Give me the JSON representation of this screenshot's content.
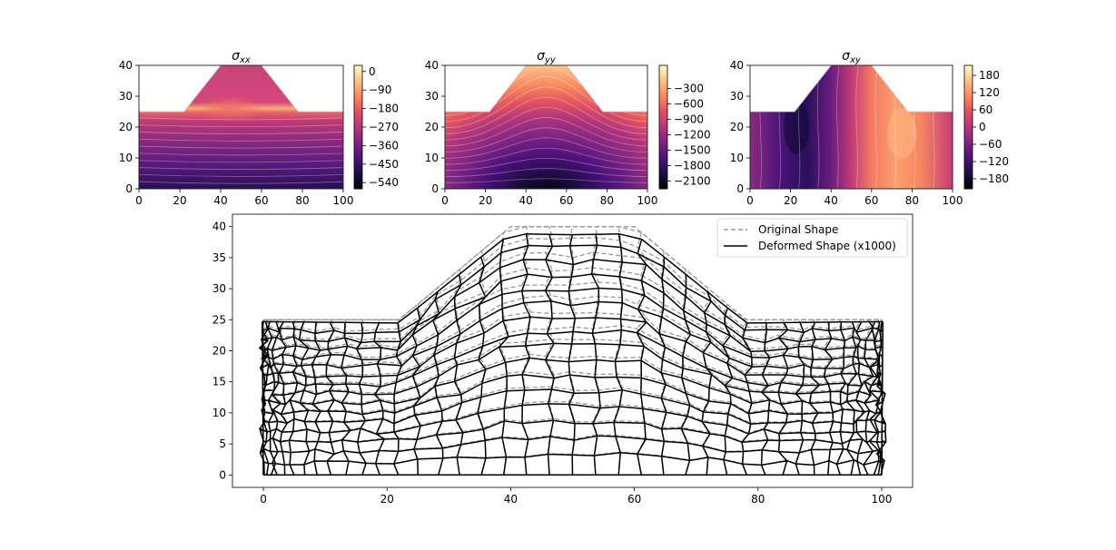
{
  "chart_data": [
    {
      "type": "contour",
      "title": "σ",
      "title_subscript": "xx",
      "xlim": [
        0,
        100
      ],
      "ylim": [
        0,
        40
      ],
      "xticks": [
        "0",
        "20",
        "40",
        "60",
        "80",
        "100"
      ],
      "yticks": [
        "0",
        "10",
        "20",
        "30",
        "40"
      ],
      "colormap": "magma",
      "colorbar_ticks": [
        "0",
        "−90",
        "−180",
        "−270",
        "−360",
        "−450",
        "−540"
      ],
      "colorbar_range": [
        -570,
        30
      ]
    },
    {
      "type": "contour",
      "title": "σ",
      "title_subscript": "yy",
      "xlim": [
        0,
        100
      ],
      "ylim": [
        0,
        40
      ],
      "xticks": [
        "0",
        "20",
        "40",
        "60",
        "80",
        "100"
      ],
      "yticks": [
        "0",
        "10",
        "20",
        "30",
        "40"
      ],
      "colormap": "magma",
      "colorbar_ticks": [
        "−300",
        "−600",
        "−900",
        "−1200",
        "−1500",
        "−1800",
        "−2100"
      ],
      "colorbar_range": [
        -2250,
        150
      ]
    },
    {
      "type": "contour",
      "title": "σ",
      "title_subscript": "xy",
      "xlim": [
        0,
        100
      ],
      "ylim": [
        0,
        40
      ],
      "xticks": [
        "0",
        "20",
        "40",
        "60",
        "80",
        "100"
      ],
      "yticks": [
        "0",
        "10",
        "20",
        "30",
        "40"
      ],
      "colormap": "magma",
      "colorbar_ticks": [
        "180",
        "120",
        "60",
        "0",
        "−60",
        "−120",
        "−180"
      ],
      "colorbar_range": [
        -215,
        215
      ]
    },
    {
      "type": "mesh",
      "xlim": [
        -5,
        105
      ],
      "ylim": [
        -2,
        42
      ],
      "xticks": [
        "0",
        "20",
        "40",
        "60",
        "80",
        "100"
      ],
      "yticks": [
        "0",
        "5",
        "10",
        "15",
        "20",
        "25",
        "30",
        "35",
        "40"
      ],
      "legend_position": "top-right",
      "series": [
        {
          "name": "Original Shape",
          "style": "dashed",
          "color": "#999999"
        },
        {
          "name": "Deformed Shape (x1000)",
          "style": "solid",
          "color": "#000000"
        }
      ],
      "outline": [
        [
          0,
          0
        ],
        [
          100,
          0
        ],
        [
          100,
          25
        ],
        [
          78,
          25
        ],
        [
          60,
          40
        ],
        [
          40,
          40
        ],
        [
          22,
          25
        ],
        [
          0,
          25
        ]
      ]
    }
  ]
}
